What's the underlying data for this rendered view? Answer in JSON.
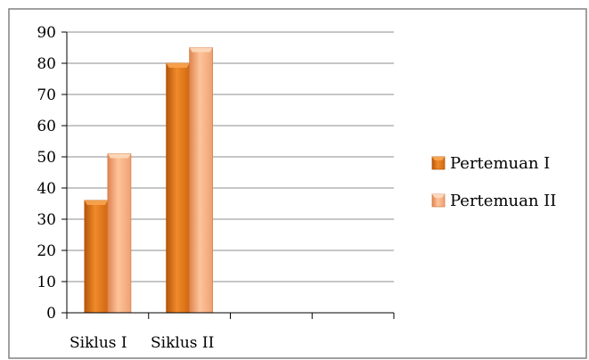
{
  "chart_data": {
    "type": "bar",
    "categories": [
      "Siklus I",
      "Siklus II",
      "",
      ""
    ],
    "series": [
      {
        "name": "Pertemuan I",
        "values": [
          36,
          80,
          null,
          null
        ]
      },
      {
        "name": "Pertemuan II",
        "values": [
          51,
          85,
          null,
          null
        ]
      }
    ],
    "ylim": [
      0,
      90
    ],
    "yticks": [
      0,
      10,
      20,
      30,
      40,
      50,
      60,
      70,
      80,
      90
    ],
    "grid": true,
    "legend": "right",
    "colors": {
      "series_1_dark": "#c9610a",
      "series_1_light": "#f7a450",
      "series_2_dark": "#e98e58",
      "series_2_light": "#fcc9a2",
      "grid": "#8c8c8c",
      "frame": "#808080"
    }
  }
}
